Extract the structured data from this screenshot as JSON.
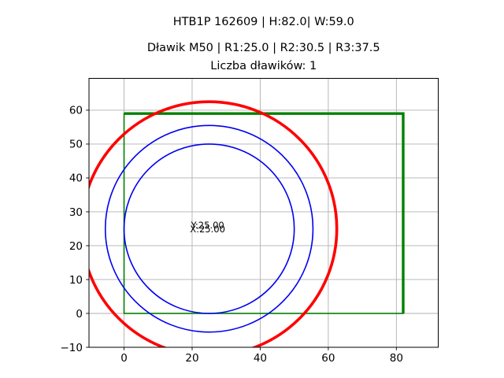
{
  "titles": {
    "line1": "HTB1P 162609 | H:82.0| W:59.0",
    "line2": "Dławik M50 | R1:25.0 | R2:30.5 | R3:37.5",
    "line3": "Liczba dławików: 1"
  },
  "chart_data": {
    "type": "line",
    "title": "HTB1P 162609 | H:82.0| W:59.0",
    "subtitle": "Dławik M50 | R1:25.0 | R2:30.5 | R3:37.5",
    "subtitle2": "Liczba dławików: 1",
    "parameters": {
      "code": "HTB1P 162609",
      "H": 82.0,
      "W": 59.0,
      "dlawik": "M50",
      "R1": 25.0,
      "R2": 30.5,
      "R3": 37.5,
      "liczba_dlawikow": 1
    },
    "xlim": [
      -10.3,
      92.3
    ],
    "ylim": [
      -10,
      69.4
    ],
    "x_ticks": [
      0,
      20,
      40,
      60,
      80
    ],
    "y_ticks": [
      -10,
      0,
      10,
      20,
      30,
      40,
      50,
      60
    ],
    "grid": true,
    "grid_color": "#b0b0b0",
    "axis_color": "#000000",
    "background": "#ffffff",
    "circles": [
      {
        "name": "circle-r1",
        "cx": 25.0,
        "cy": 25.0,
        "r": 25.0,
        "color": "#0000f0",
        "stroke_width": 1.6
      },
      {
        "name": "circle-r2",
        "cx": 25.0,
        "cy": 25.0,
        "r": 30.5,
        "color": "#0000f0",
        "stroke_width": 1.6
      },
      {
        "name": "circle-r3",
        "cx": 25.0,
        "cy": 25.0,
        "r": 37.5,
        "color": "#ff0000",
        "stroke_width": 3.6
      }
    ],
    "rectangle": {
      "x": 0,
      "y": 0,
      "width": 82,
      "height": 59,
      "color": "#008000",
      "outline_stroke_width": 1.6,
      "highlight_stroke_width": 3.4,
      "highlight_edges": "top,right"
    },
    "annotation": {
      "lines": [
        "Y:25.00",
        "X:25.00"
      ],
      "x": 25.0,
      "y": 25.0
    }
  }
}
